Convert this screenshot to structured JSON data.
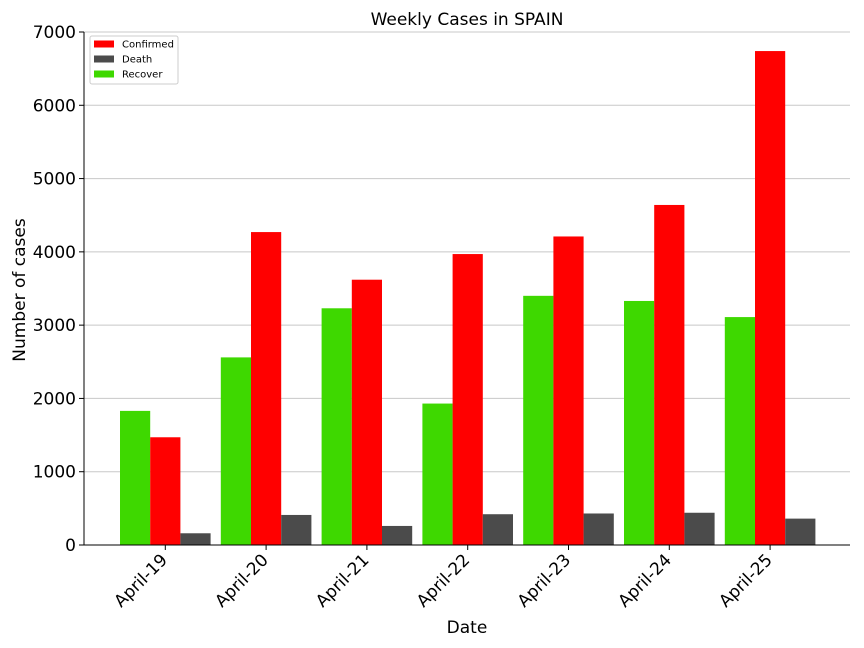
{
  "chart_data": {
    "type": "bar",
    "title": "Weekly Cases in SPAIN",
    "xlabel": "Date",
    "ylabel": "Number of cases",
    "categories": [
      "April-19",
      "April-20",
      "April-21",
      "April-22",
      "April-23",
      "April-24",
      "April-25"
    ],
    "series": [
      {
        "name": "Recover",
        "color": "#3ed800",
        "values": [
          1830,
          2560,
          3230,
          1930,
          3400,
          3330,
          3110
        ]
      },
      {
        "name": "Confirmed",
        "color": "#ff0000",
        "values": [
          1470,
          4270,
          3620,
          3970,
          4210,
          4640,
          6740
        ]
      },
      {
        "name": "Death",
        "color": "#4b4b4b",
        "values": [
          160,
          410,
          260,
          420,
          430,
          440,
          360
        ]
      }
    ],
    "legend_order": [
      "Confirmed",
      "Death",
      "Recover"
    ],
    "legend_position": "top-left",
    "ylim": [
      0,
      7000
    ],
    "yticks": [
      0,
      1000,
      2000,
      3000,
      4000,
      5000,
      6000,
      7000
    ],
    "grid": "horizontal"
  }
}
